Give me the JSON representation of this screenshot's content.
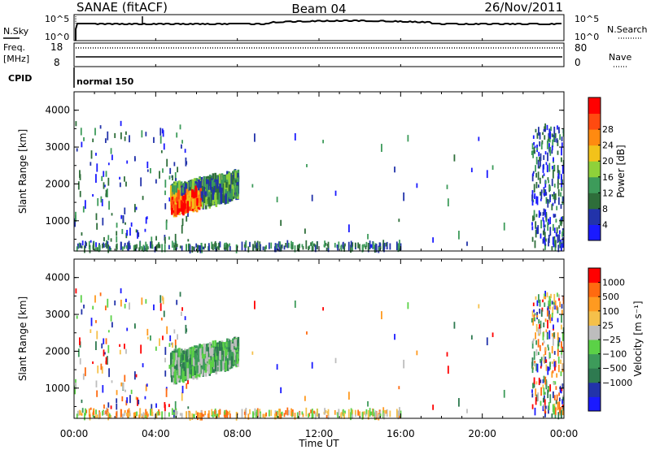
{
  "header": {
    "station": "SANAE (fitACF)",
    "beam": "Beam 04",
    "date": "26/Nov/2011"
  },
  "strips": {
    "nsky_label": "N.Sky",
    "nsky_tick_hi": "10^5",
    "nsky_tick_lo": "10^0",
    "nsearch_label": "N.Search",
    "nsearch_tick_hi": "10^5",
    "nsearch_tick_lo": "10^0",
    "freq_label": "Freq.",
    "freq_unit": "[MHz]",
    "freq_tick_hi": "18",
    "freq_tick_lo": "8",
    "nave_label": "Nave",
    "nave_tick_hi": "80",
    "nave_tick_lo": "0",
    "cpid_label": "CPID",
    "cpid_value": "normal 150"
  },
  "colors": {
    "power": [
      "#1a1aff",
      "#2233aa",
      "#2e6e3a",
      "#3d9b5a",
      "#8fd13a",
      "#f2c21a",
      "#ff8a10",
      "#ff4a10",
      "#ff0000"
    ],
    "velocity": [
      "#ff0000",
      "#ff6a10",
      "#ff9a20",
      "#f5c04a",
      "#bdbdbd",
      "#5bd147",
      "#3d9b5a",
      "#2e7a50",
      "#2233aa",
      "#1a1aff"
    ]
  },
  "chart_data": [
    {
      "type": "heatmap",
      "panel": "power",
      "ylabel": "Slant Range [km]",
      "xlabel": "Time UT",
      "x_ticks": [
        "00:00",
        "04:00",
        "08:00",
        "12:00",
        "16:00",
        "20:00",
        "00:00"
      ],
      "y_ticks": [
        "1000",
        "2000",
        "3000",
        "4000"
      ],
      "ylim": [
        180,
        4500
      ],
      "xlim_hours": [
        0,
        24
      ],
      "colorbar_label": "Power [dB]",
      "colorbar_ticks": [
        "4",
        "8",
        "12",
        "16",
        "20",
        "24",
        "28"
      ]
    },
    {
      "type": "heatmap",
      "panel": "velocity",
      "ylabel": "Slant Range [km]",
      "xlabel": "Time UT",
      "x_ticks": [
        "00:00",
        "04:00",
        "08:00",
        "12:00",
        "16:00",
        "20:00",
        "00:00"
      ],
      "y_ticks": [
        "1000",
        "2000",
        "3000",
        "4000"
      ],
      "ylim": [
        180,
        4500
      ],
      "xlim_hours": [
        0,
        24
      ],
      "colorbar_label": "Velocity [m s⁻¹]",
      "colorbar_ticks": [
        "1000",
        "500",
        "100",
        "25",
        "−25",
        "−100",
        "−500",
        "−1000"
      ]
    }
  ]
}
